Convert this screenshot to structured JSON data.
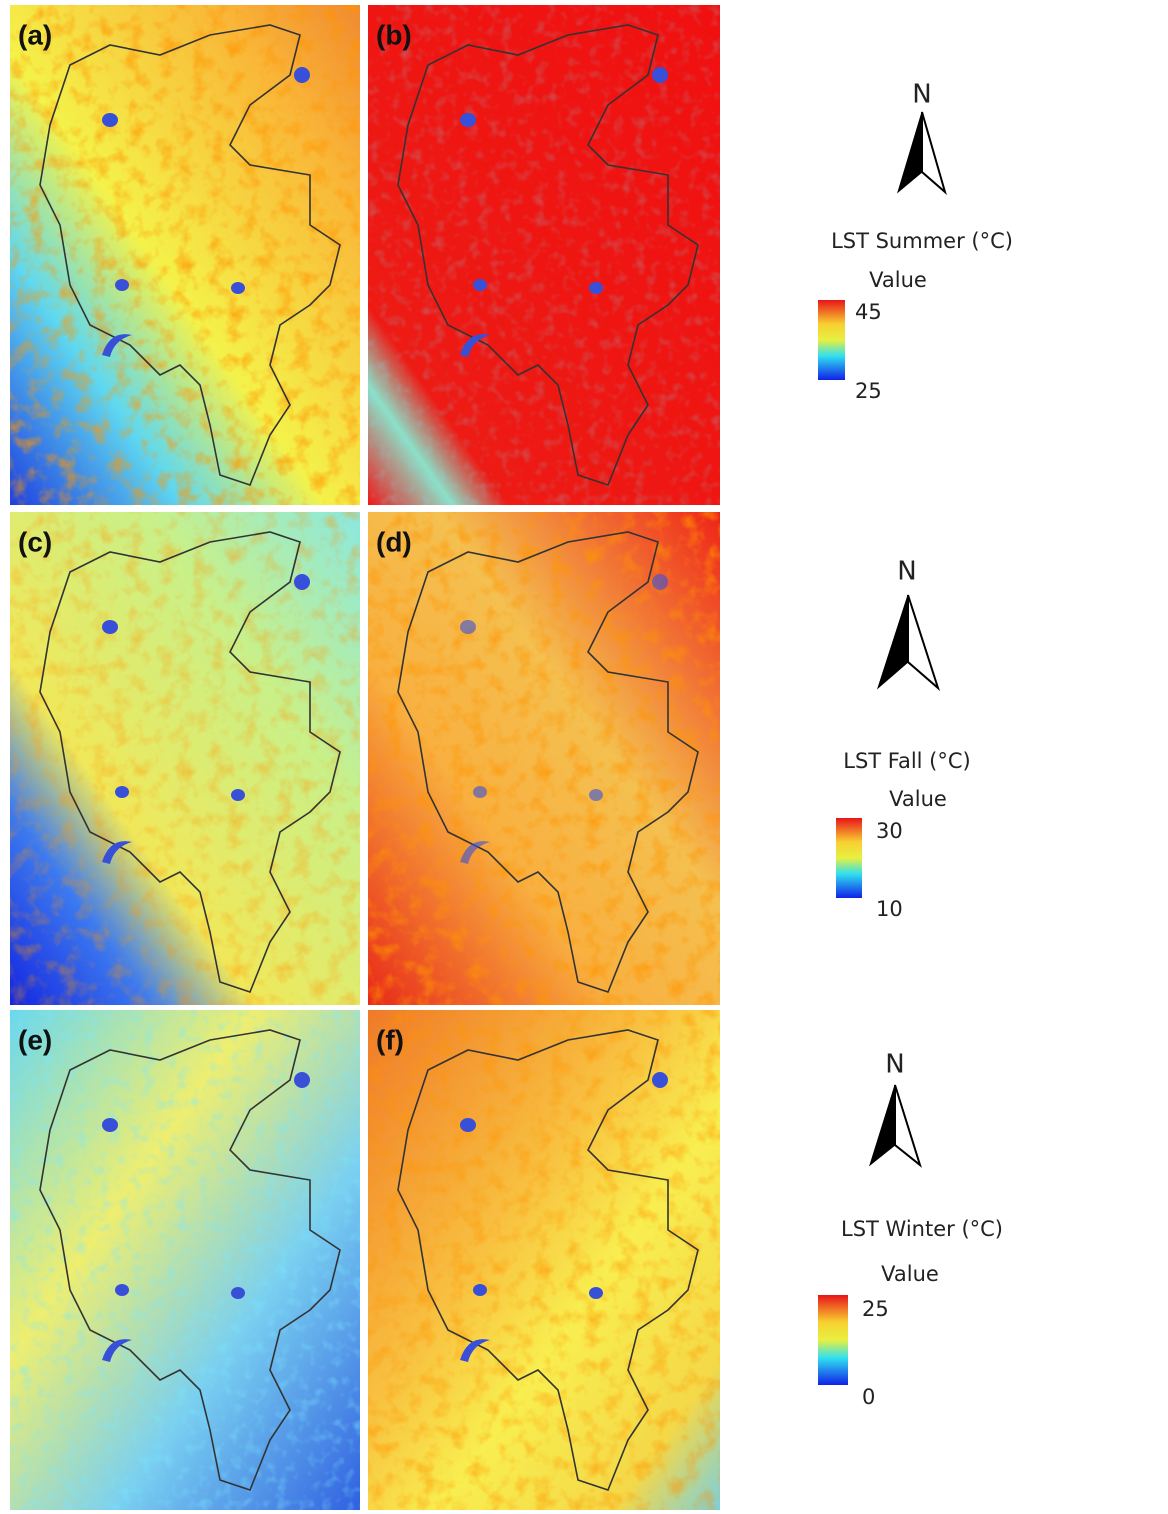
{
  "panels": [
    {
      "label": "(a)"
    },
    {
      "label": "(b)"
    },
    {
      "label": "(c)"
    },
    {
      "label": "(d)"
    },
    {
      "label": "(e)"
    },
    {
      "label": "(f)"
    }
  ],
  "legends": [
    {
      "north": "N",
      "title": "LST Summer (°C)",
      "subtitle": "Value",
      "max": 45,
      "min": 25
    },
    {
      "north": "N",
      "title": "LST Fall (°C)",
      "subtitle": "Value",
      "max": 30,
      "min": 10
    },
    {
      "north": "N",
      "title": "LST Winter (°C)",
      "subtitle": "Value",
      "max": 25,
      "min": 0
    }
  ]
}
